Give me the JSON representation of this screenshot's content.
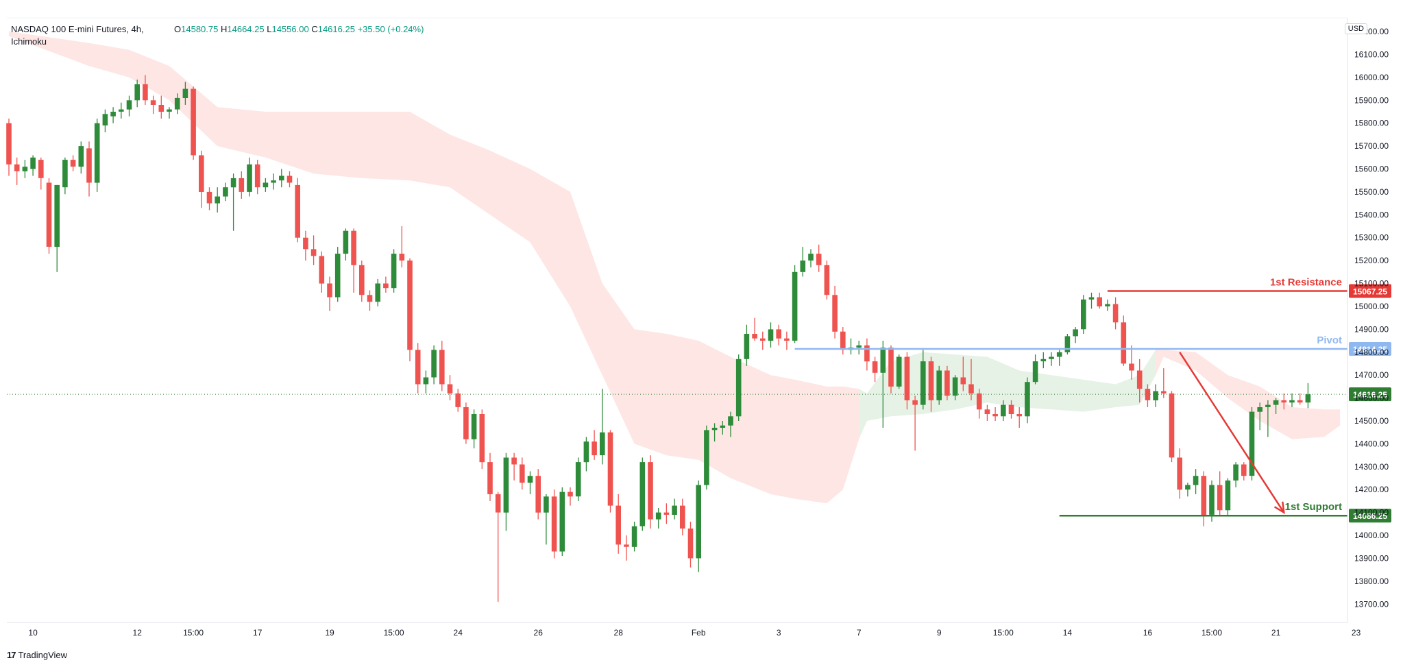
{
  "legend": {
    "symbol": "NASDAQ 100 E-mini Futures, 4h,",
    "indicator": "Ichimoku",
    "o_label": "O",
    "o_value": "14580.75",
    "h_label": "H",
    "h_value": "14664.25",
    "l_label": "L",
    "l_value": "14556.00",
    "c_label": "C",
    "c_value": "14616.25",
    "change": "+35.50 (+0.24%)"
  },
  "currency": "USD",
  "brand": {
    "logo": "17",
    "name": "TradingView"
  },
  "colors": {
    "up": "#2e8b3a",
    "down": "#ef5350",
    "cloud_bear": "#fde6e4",
    "cloud_bull": "#e6f2e6",
    "resistance": "#e53935",
    "pivot": "#90b8f0",
    "support": "#2e7d32",
    "arrow": "#e53935"
  },
  "chart_data": {
    "type": "candlestick",
    "timeframe": "4h",
    "ylim": [
      13620,
      16260
    ],
    "yticks": [
      13700,
      13800,
      13900,
      14000,
      14100,
      14200,
      14300,
      14400,
      14500,
      14600,
      14700,
      14800,
      14900,
      15000,
      15100,
      15200,
      15300,
      15400,
      15500,
      15600,
      15700,
      15800,
      15900,
      16000,
      16100,
      16200
    ],
    "ytick_labels": [
      "13700.00",
      "13800.00",
      "13900.00",
      "14000.00",
      "14100.00",
      "14200.00",
      "14300.00",
      "14400.00",
      "14500.00",
      "14600.00",
      "14700.00",
      "14800.00",
      "14900.00",
      "15000.00",
      "15100.00",
      "15200.00",
      "15300.00",
      "15400.00",
      "15500.00",
      "15600.00",
      "15700.00",
      "15800.00",
      "15900.00",
      "16000.00",
      "16100.00",
      "16200.00"
    ],
    "xticks": [
      {
        "label": "10",
        "bar": 3
      },
      {
        "label": "12",
        "bar": 16
      },
      {
        "label": "15:00",
        "bar": 23
      },
      {
        "label": "17",
        "bar": 31
      },
      {
        "label": "19",
        "bar": 40
      },
      {
        "label": "15:00",
        "bar": 48
      },
      {
        "label": "24",
        "bar": 56
      },
      {
        "label": "26",
        "bar": 66
      },
      {
        "label": "28",
        "bar": 76
      },
      {
        "label": "Feb",
        "bar": 86
      },
      {
        "label": "3",
        "bar": 96
      },
      {
        "label": "7",
        "bar": 106
      },
      {
        "label": "9",
        "bar": 116
      },
      {
        "label": "15:00",
        "bar": 124
      },
      {
        "label": "14",
        "bar": 132
      },
      {
        "label": "16",
        "bar": 142
      },
      {
        "label": "15:00",
        "bar": 150
      },
      {
        "label": "21",
        "bar": 158
      },
      {
        "label": "23",
        "bar": 168
      }
    ],
    "candles": [
      [
        15800,
        15820,
        15570,
        15620
      ],
      [
        15620,
        15650,
        15530,
        15590
      ],
      [
        15590,
        15640,
        15560,
        15610
      ],
      [
        15600,
        15660,
        15570,
        15650
      ],
      [
        15640,
        15650,
        15510,
        15560
      ],
      [
        15540,
        15560,
        15230,
        15260
      ],
      [
        15260,
        15530,
        15150,
        15530
      ],
      [
        15520,
        15650,
        15490,
        15640
      ],
      [
        15640,
        15660,
        15590,
        15610
      ],
      [
        15610,
        15720,
        15580,
        15700
      ],
      [
        15690,
        15720,
        15480,
        15540
      ],
      [
        15540,
        15820,
        15500,
        15800
      ],
      [
        15790,
        15860,
        15760,
        15840
      ],
      [
        15830,
        15870,
        15800,
        15850
      ],
      [
        15850,
        15890,
        15820,
        15860
      ],
      [
        15860,
        15920,
        15830,
        15900
      ],
      [
        15900,
        15990,
        15870,
        15970
      ],
      [
        15970,
        16010,
        15880,
        15900
      ],
      [
        15900,
        15920,
        15840,
        15880
      ],
      [
        15880,
        15920,
        15820,
        15850
      ],
      [
        15850,
        15870,
        15820,
        15860
      ],
      [
        15860,
        15930,
        15840,
        15910
      ],
      [
        15910,
        15980,
        15880,
        15950
      ],
      [
        15950,
        15960,
        15640,
        15660
      ],
      [
        15660,
        15680,
        15430,
        15500
      ],
      [
        15500,
        15520,
        15420,
        15450
      ],
      [
        15450,
        15520,
        15410,
        15480
      ],
      [
        15480,
        15540,
        15460,
        15520
      ],
      [
        15520,
        15580,
        15330,
        15560
      ],
      [
        15560,
        15590,
        15470,
        15500
      ],
      [
        15500,
        15650,
        15480,
        15620
      ],
      [
        15620,
        15640,
        15490,
        15520
      ],
      [
        15520,
        15560,
        15500,
        15540
      ],
      [
        15540,
        15580,
        15510,
        15550
      ],
      [
        15550,
        15600,
        15520,
        15570
      ],
      [
        15570,
        15590,
        15520,
        15540
      ],
      [
        15530,
        15560,
        15280,
        15300
      ],
      [
        15300,
        15330,
        15200,
        15250
      ],
      [
        15250,
        15310,
        15180,
        15220
      ],
      [
        15220,
        15240,
        15060,
        15100
      ],
      [
        15100,
        15130,
        14980,
        15040
      ],
      [
        15040,
        15260,
        15020,
        15230
      ],
      [
        15230,
        15340,
        15200,
        15330
      ],
      [
        15330,
        15340,
        15060,
        15180
      ],
      [
        15180,
        15200,
        15020,
        15050
      ],
      [
        15050,
        15070,
        14980,
        15020
      ],
      [
        15020,
        15120,
        15000,
        15100
      ],
      [
        15100,
        15130,
        15060,
        15080
      ],
      [
        15080,
        15250,
        15060,
        15230
      ],
      [
        15230,
        15350,
        15170,
        15200
      ],
      [
        15200,
        15210,
        14760,
        14810
      ],
      [
        14810,
        14840,
        14620,
        14660
      ],
      [
        14660,
        14720,
        14620,
        14690
      ],
      [
        14690,
        14830,
        14660,
        14810
      ],
      [
        14810,
        14850,
        14630,
        14660
      ],
      [
        14660,
        14700,
        14590,
        14620
      ],
      [
        14620,
        14640,
        14540,
        14560
      ],
      [
        14560,
        14580,
        14400,
        14420
      ],
      [
        14420,
        14550,
        14380,
        14530
      ],
      [
        14530,
        14550,
        14290,
        14320
      ],
      [
        14320,
        14360,
        14150,
        14180
      ],
      [
        14180,
        14190,
        13710,
        14100
      ],
      [
        14100,
        14360,
        14020,
        14340
      ],
      [
        14340,
        14360,
        14240,
        14310
      ],
      [
        14310,
        14340,
        14200,
        14230
      ],
      [
        14230,
        14280,
        14180,
        14260
      ],
      [
        14260,
        14290,
        14070,
        14100
      ],
      [
        14100,
        14180,
        13960,
        14170
      ],
      [
        14170,
        14200,
        13900,
        13930
      ],
      [
        13930,
        14210,
        13910,
        14190
      ],
      [
        14190,
        14210,
        14130,
        14170
      ],
      [
        14170,
        14340,
        14150,
        14320
      ],
      [
        14320,
        14430,
        14280,
        14410
      ],
      [
        14410,
        14460,
        14330,
        14350
      ],
      [
        14350,
        14640,
        14310,
        14450
      ],
      [
        14450,
        14460,
        14100,
        14130
      ],
      [
        14130,
        14180,
        13920,
        13960
      ],
      [
        13960,
        14000,
        13890,
        13950
      ],
      [
        13950,
        14060,
        13930,
        14040
      ],
      [
        14040,
        14340,
        14020,
        14320
      ],
      [
        14320,
        14350,
        14030,
        14070
      ],
      [
        14070,
        14120,
        14030,
        14100
      ],
      [
        14100,
        14140,
        14050,
        14090
      ],
      [
        14090,
        14160,
        14070,
        14130
      ],
      [
        14130,
        14160,
        14000,
        14030
      ],
      [
        14030,
        14060,
        13860,
        13900
      ],
      [
        13900,
        14240,
        13840,
        14220
      ],
      [
        14220,
        14480,
        14200,
        14460
      ],
      [
        14460,
        14490,
        14410,
        14470
      ],
      [
        14470,
        14500,
        14440,
        14480
      ],
      [
        14480,
        14540,
        14430,
        14520
      ],
      [
        14520,
        14790,
        14500,
        14770
      ],
      [
        14770,
        14920,
        14740,
        14880
      ],
      [
        14880,
        14950,
        14850,
        14860
      ],
      [
        14860,
        14890,
        14810,
        14850
      ],
      [
        14850,
        14930,
        14820,
        14900
      ],
      [
        14900,
        14920,
        14830,
        14860
      ],
      [
        14860,
        14890,
        14810,
        14850
      ],
      [
        14850,
        15180,
        14840,
        15150
      ],
      [
        15150,
        15260,
        15130,
        15200
      ],
      [
        15200,
        15250,
        15170,
        15230
      ],
      [
        15230,
        15270,
        15150,
        15180
      ],
      [
        15180,
        15200,
        15030,
        15050
      ],
      [
        15050,
        15090,
        14860,
        14890
      ],
      [
        14890,
        14910,
        14790,
        14810
      ],
      [
        14810,
        14860,
        14790,
        14820
      ],
      [
        14820,
        14850,
        14790,
        14830
      ],
      [
        14830,
        14860,
        14720,
        14760
      ],
      [
        14760,
        14780,
        14670,
        14710
      ],
      [
        14710,
        14850,
        14470,
        14820
      ],
      [
        14820,
        14830,
        14620,
        14650
      ],
      [
        14650,
        14790,
        14640,
        14780
      ],
      [
        14780,
        14800,
        14550,
        14590
      ],
      [
        14590,
        14610,
        14370,
        14570
      ],
      [
        14570,
        14810,
        14550,
        14760
      ],
      [
        14760,
        14780,
        14540,
        14590
      ],
      [
        14590,
        14740,
        14570,
        14720
      ],
      [
        14720,
        14740,
        14590,
        14610
      ],
      [
        14610,
        14700,
        14590,
        14690
      ],
      [
        14690,
        14780,
        14630,
        14660
      ],
      [
        14660,
        14770,
        14590,
        14620
      ],
      [
        14620,
        14640,
        14510,
        14550
      ],
      [
        14550,
        14570,
        14500,
        14530
      ],
      [
        14530,
        14560,
        14500,
        14520
      ],
      [
        14520,
        14590,
        14500,
        14570
      ],
      [
        14570,
        14590,
        14510,
        14530
      ],
      [
        14530,
        14560,
        14470,
        14520
      ],
      [
        14520,
        14690,
        14490,
        14670
      ],
      [
        14670,
        14790,
        14660,
        14760
      ],
      [
        14760,
        14800,
        14730,
        14770
      ],
      [
        14770,
        14800,
        14740,
        14780
      ],
      [
        14780,
        14810,
        14740,
        14800
      ],
      [
        14800,
        14880,
        14790,
        14870
      ],
      [
        14870,
        14910,
        14840,
        14900
      ],
      [
        14900,
        15050,
        14880,
        15030
      ],
      [
        15030,
        15060,
        14990,
        15040
      ],
      [
        15040,
        15060,
        14990,
        15000
      ],
      [
        15000,
        15030,
        14980,
        15010
      ],
      [
        15010,
        15040,
        14900,
        14930
      ],
      [
        14930,
        14960,
        14740,
        14750
      ],
      [
        14750,
        14830,
        14680,
        14720
      ],
      [
        14720,
        14770,
        14580,
        14640
      ],
      [
        14640,
        14660,
        14560,
        14590
      ],
      [
        14590,
        14660,
        14560,
        14630
      ],
      [
        14630,
        14730,
        14600,
        14620
      ],
      [
        14620,
        14630,
        14320,
        14340
      ],
      [
        14340,
        14380,
        14160,
        14200
      ],
      [
        14200,
        14230,
        14170,
        14220
      ],
      [
        14220,
        14290,
        14180,
        14260
      ],
      [
        14260,
        14280,
        14040,
        14090
      ],
      [
        14090,
        14240,
        14060,
        14220
      ],
      [
        14220,
        14280,
        14090,
        14110
      ],
      [
        14110,
        14250,
        14090,
        14240
      ],
      [
        14240,
        14320,
        14210,
        14310
      ],
      [
        14310,
        14320,
        14240,
        14260
      ],
      [
        14260,
        14560,
        14240,
        14540
      ],
      [
        14540,
        14580,
        14460,
        14560
      ],
      [
        14560,
        14590,
        14430,
        14570
      ],
      [
        14570,
        14600,
        14530,
        14590
      ],
      [
        14590,
        14620,
        14550,
        14580
      ],
      [
        14580,
        14620,
        14560,
        14590
      ],
      [
        14590,
        14620,
        14570,
        14580
      ],
      [
        14580,
        14665,
        14556,
        14616
      ]
    ],
    "cloud": [
      [
        0,
        16200,
        16180,
        "bear"
      ],
      [
        10,
        16150,
        16050,
        "bear"
      ],
      [
        15,
        16120,
        16000,
        "bear"
      ],
      [
        20,
        16050,
        15900,
        "bear"
      ],
      [
        26,
        15870,
        15700,
        "bear"
      ],
      [
        32,
        15850,
        15650,
        "bear"
      ],
      [
        38,
        15850,
        15580,
        "bear"
      ],
      [
        44,
        15850,
        15560,
        "bear"
      ],
      [
        50,
        15850,
        15550,
        "bear"
      ],
      [
        55,
        15750,
        15520,
        "bear"
      ],
      [
        60,
        15680,
        15400,
        "bear"
      ],
      [
        65,
        15600,
        15280,
        "bear"
      ],
      [
        70,
        15500,
        15000,
        "bear"
      ],
      [
        74,
        15100,
        14700,
        "bear"
      ],
      [
        78,
        14900,
        14400,
        "bear"
      ],
      [
        82,
        14880,
        14350,
        "bear"
      ],
      [
        86,
        14850,
        14330,
        "bear"
      ],
      [
        90,
        14780,
        14250,
        "bear"
      ],
      [
        95,
        14700,
        14180,
        "bear"
      ],
      [
        98,
        14680,
        14160,
        "bear"
      ],
      [
        102,
        14650,
        14140,
        "bear"
      ],
      [
        104,
        14650,
        14200,
        "bear"
      ],
      [
        106,
        14640,
        14420,
        "bear"
      ],
      [
        107,
        14620,
        14500,
        "bull"
      ],
      [
        110,
        14760,
        14520,
        "bull"
      ],
      [
        114,
        14800,
        14530,
        "bull"
      ],
      [
        118,
        14790,
        14550,
        "bull"
      ],
      [
        122,
        14780,
        14580,
        "bull"
      ],
      [
        126,
        14720,
        14560,
        "bull"
      ],
      [
        130,
        14700,
        14550,
        "bull"
      ],
      [
        134,
        14680,
        14540,
        "bull"
      ],
      [
        138,
        14660,
        14560,
        "bull"
      ],
      [
        141,
        14700,
        14570,
        "bull"
      ],
      [
        143,
        14810,
        14700,
        "bull"
      ],
      [
        144,
        14810,
        14780,
        "bear"
      ],
      [
        148,
        14800,
        14720,
        "bear"
      ],
      [
        152,
        14700,
        14600,
        "bear"
      ],
      [
        156,
        14650,
        14500,
        "bear"
      ],
      [
        160,
        14560,
        14420,
        "bear"
      ],
      [
        164,
        14550,
        14430,
        "bear"
      ],
      [
        166,
        14550,
        14480,
        "bear"
      ]
    ],
    "levels": [
      {
        "name": "1st Resistance",
        "value": 15067.25,
        "label": "15067.25",
        "start_bar": 137,
        "color": "#e53935"
      },
      {
        "name": "Pivot",
        "value": 14814.25,
        "label": "14814.25",
        "start_bar": 98,
        "color": "#90b8f0"
      },
      {
        "name": "1st Support",
        "value": 14086.25,
        "label": "14086.25",
        "start_bar": 131,
        "color": "#2e7d32"
      }
    ],
    "last_price": {
      "value": 14616.25,
      "label": "14616.25"
    },
    "arrow": {
      "from_bar": 146,
      "from_value": 14800,
      "to_bar": 159,
      "to_value": 14100
    }
  }
}
